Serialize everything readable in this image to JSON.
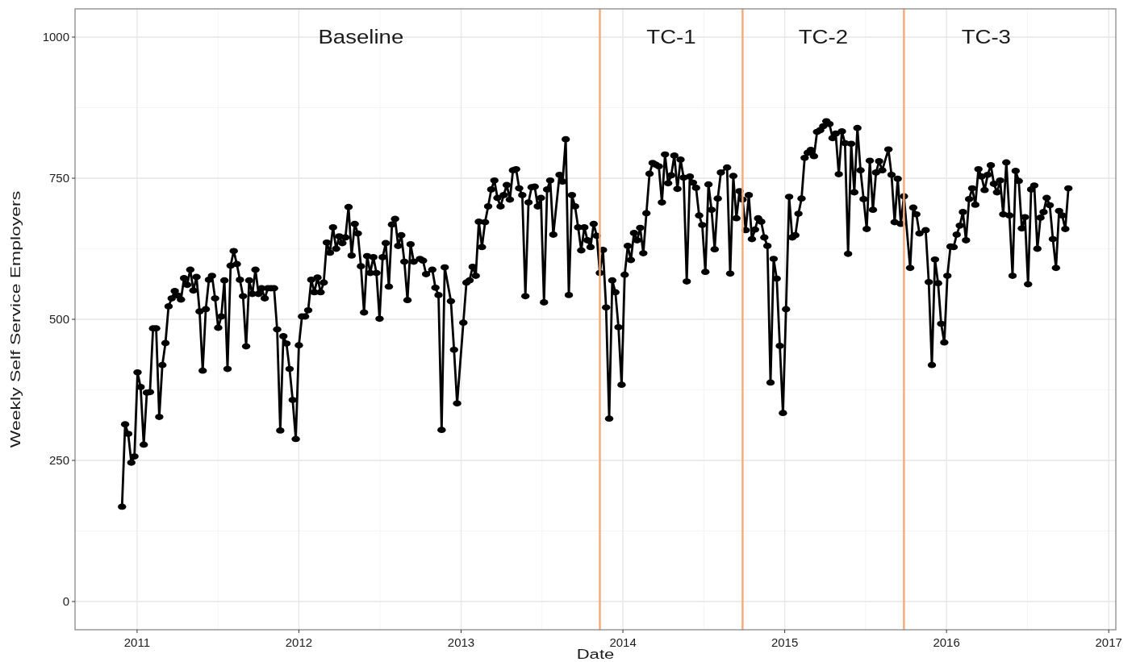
{
  "chart_data": {
    "type": "line",
    "xlabel": "Date",
    "ylabel": "Weekly Self Service Employers",
    "x": [
      "2010-11-28",
      "2010-12-05",
      "2010-12-12",
      "2010-12-19",
      "2010-12-26",
      "2011-01-02",
      "2011-01-09",
      "2011-01-16",
      "2011-01-23",
      "2011-01-30",
      "2011-02-06",
      "2011-02-13",
      "2011-02-20",
      "2011-02-27",
      "2011-03-06",
      "2011-03-13",
      "2011-03-20",
      "2011-03-27",
      "2011-04-03",
      "2011-04-10",
      "2011-04-17",
      "2011-04-24",
      "2011-05-01",
      "2011-05-08",
      "2011-05-15",
      "2011-05-22",
      "2011-05-29",
      "2011-06-05",
      "2011-06-12",
      "2011-06-19",
      "2011-06-26",
      "2011-07-03",
      "2011-07-10",
      "2011-07-17",
      "2011-07-24",
      "2011-07-31",
      "2011-08-07",
      "2011-08-14",
      "2011-08-21",
      "2011-08-28",
      "2011-09-04",
      "2011-09-11",
      "2011-09-18",
      "2011-09-25",
      "2011-10-02",
      "2011-10-09",
      "2011-10-16",
      "2011-10-23",
      "2011-10-30",
      "2011-11-06",
      "2011-11-13",
      "2011-11-20",
      "2011-11-27",
      "2011-12-04",
      "2011-12-11",
      "2011-12-18",
      "2011-12-25",
      "2012-01-01",
      "2012-01-08",
      "2012-01-15",
      "2012-01-22",
      "2012-01-29",
      "2012-02-05",
      "2012-02-12",
      "2012-02-19",
      "2012-02-26",
      "2012-03-04",
      "2012-03-11",
      "2012-03-18",
      "2012-03-25",
      "2012-04-01",
      "2012-04-08",
      "2012-04-15",
      "2012-04-22",
      "2012-04-29",
      "2012-05-06",
      "2012-05-13",
      "2012-05-20",
      "2012-05-27",
      "2012-06-03",
      "2012-06-10",
      "2012-06-17",
      "2012-06-24",
      "2012-07-01",
      "2012-07-08",
      "2012-07-15",
      "2012-07-22",
      "2012-07-29",
      "2012-08-05",
      "2012-08-12",
      "2012-08-19",
      "2012-08-26",
      "2012-09-02",
      "2012-09-09",
      "2012-09-16",
      "2012-09-30",
      "2012-10-07",
      "2012-10-14",
      "2012-10-28",
      "2012-11-04",
      "2012-11-11",
      "2012-11-18",
      "2012-11-25",
      "2012-12-09",
      "2012-12-16",
      "2012-12-23",
      "2013-01-06",
      "2013-01-13",
      "2013-01-20",
      "2013-01-27",
      "2013-02-03",
      "2013-02-10",
      "2013-02-17",
      "2013-02-24",
      "2013-03-03",
      "2013-03-10",
      "2013-03-17",
      "2013-03-24",
      "2013-03-31",
      "2013-04-07",
      "2013-04-14",
      "2013-04-21",
      "2013-04-28",
      "2013-05-05",
      "2013-05-12",
      "2013-05-19",
      "2013-05-26",
      "2013-06-02",
      "2013-06-09",
      "2013-06-16",
      "2013-06-23",
      "2013-06-30",
      "2013-07-07",
      "2013-07-14",
      "2013-07-21",
      "2013-07-28",
      "2013-08-11",
      "2013-08-18",
      "2013-08-25",
      "2013-09-01",
      "2013-09-08",
      "2013-09-15",
      "2013-09-22",
      "2013-09-29",
      "2013-10-06",
      "2013-10-13",
      "2013-10-20",
      "2013-10-27",
      "2013-11-03",
      "2013-11-10",
      "2013-11-17",
      "2013-11-24",
      "2013-12-01",
      "2013-12-08",
      "2013-12-15",
      "2013-12-22",
      "2013-12-29",
      "2014-01-05",
      "2014-01-12",
      "2014-01-19",
      "2014-01-26",
      "2014-02-02",
      "2014-02-09",
      "2014-02-16",
      "2014-02-23",
      "2014-03-02",
      "2014-03-09",
      "2014-03-16",
      "2014-03-23",
      "2014-03-30",
      "2014-04-06",
      "2014-04-13",
      "2014-04-20",
      "2014-04-27",
      "2014-05-04",
      "2014-05-11",
      "2014-05-18",
      "2014-05-25",
      "2014-06-01",
      "2014-06-08",
      "2014-06-15",
      "2014-06-22",
      "2014-06-29",
      "2014-07-06",
      "2014-07-13",
      "2014-07-20",
      "2014-07-27",
      "2014-08-03",
      "2014-08-10",
      "2014-08-24",
      "2014-08-31",
      "2014-09-07",
      "2014-09-14",
      "2014-09-21",
      "2014-09-28",
      "2014-10-05",
      "2014-10-12",
      "2014-10-19",
      "2014-10-26",
      "2014-11-02",
      "2014-11-09",
      "2014-11-16",
      "2014-11-23",
      "2014-11-30",
      "2014-12-07",
      "2014-12-14",
      "2014-12-21",
      "2014-12-28",
      "2015-01-04",
      "2015-01-11",
      "2015-01-18",
      "2015-01-25",
      "2015-02-01",
      "2015-02-08",
      "2015-02-15",
      "2015-02-22",
      "2015-03-01",
      "2015-03-08",
      "2015-03-15",
      "2015-03-22",
      "2015-03-29",
      "2015-04-05",
      "2015-04-12",
      "2015-04-19",
      "2015-04-26",
      "2015-05-03",
      "2015-05-10",
      "2015-05-17",
      "2015-05-24",
      "2015-05-31",
      "2015-06-07",
      "2015-06-14",
      "2015-06-21",
      "2015-06-28",
      "2015-07-05",
      "2015-07-12",
      "2015-07-19",
      "2015-07-26",
      "2015-08-02",
      "2015-08-09",
      "2015-08-23",
      "2015-08-30",
      "2015-09-06",
      "2015-09-13",
      "2015-09-20",
      "2015-09-27",
      "2015-10-11",
      "2015-10-18",
      "2015-10-25",
      "2015-11-01",
      "2015-11-15",
      "2015-11-22",
      "2015-11-29",
      "2015-12-06",
      "2015-12-13",
      "2015-12-20",
      "2015-12-27",
      "2016-01-03",
      "2016-01-10",
      "2016-01-17",
      "2016-01-24",
      "2016-01-31",
      "2016-02-07",
      "2016-02-14",
      "2016-02-21",
      "2016-02-28",
      "2016-03-06",
      "2016-03-13",
      "2016-03-20",
      "2016-03-27",
      "2016-04-03",
      "2016-04-10",
      "2016-04-17",
      "2016-04-24",
      "2016-05-01",
      "2016-05-08",
      "2016-05-15",
      "2016-05-22",
      "2016-05-29",
      "2016-06-05",
      "2016-06-12",
      "2016-06-19",
      "2016-06-26",
      "2016-07-03",
      "2016-07-10",
      "2016-07-17",
      "2016-07-24",
      "2016-07-31",
      "2016-08-07",
      "2016-08-14",
      "2016-08-21",
      "2016-08-28",
      "2016-09-04",
      "2016-09-11",
      "2016-09-18",
      "2016-09-25",
      "2016-10-02"
    ],
    "series": [
      {
        "color": "#000000",
        "values": [
          168,
          314,
          297,
          246,
          257,
          406,
          380,
          278,
          370,
          371,
          484,
          484,
          327,
          419,
          458,
          523,
          537,
          550,
          542,
          535,
          573,
          561,
          588,
          551,
          575,
          514,
          409,
          518,
          570,
          577,
          537,
          485,
          505,
          569,
          412,
          595,
          621,
          598,
          570,
          541,
          452,
          569,
          545,
          588,
          545,
          555,
          537,
          555,
          555,
          555,
          482,
          303,
          470,
          457,
          412,
          357,
          288,
          454,
          505,
          505,
          516,
          570,
          548,
          574,
          548,
          565,
          636,
          618,
          663,
          625,
          647,
          635,
          645,
          699,
          613,
          669,
          652,
          594,
          512,
          612,
          582,
          610,
          582,
          501,
          610,
          635,
          558,
          668,
          678,
          630,
          649,
          602,
          534,
          633,
          602,
          607,
          604,
          580,
          588,
          556,
          543,
          304,
          592,
          532,
          446,
          351,
          494,
          565,
          569,
          593,
          577,
          673,
          628,
          672,
          700,
          730,
          746,
          715,
          700,
          720,
          738,
          712,
          764,
          766,
          732,
          720,
          541,
          707,
          734,
          735,
          700,
          715,
          530,
          730,
          746,
          650,
          756,
          744,
          819,
          543,
          720,
          700,
          663,
          622,
          663,
          640,
          628,
          669,
          648,
          582,
          623,
          521,
          324,
          569,
          548,
          486,
          384,
          579,
          630,
          605,
          653,
          640,
          662,
          617,
          688,
          758,
          777,
          774,
          771,
          707,
          792,
          741,
          755,
          790,
          731,
          783,
          751,
          567,
          753,
          742,
          733,
          684,
          667,
          584,
          739,
          694,
          624,
          714,
          760,
          769,
          581,
          754,
          679,
          727,
          712,
          658,
          720,
          642,
          659,
          679,
          673,
          645,
          630,
          388,
          607,
          572,
          453,
          334,
          518,
          717,
          645,
          649,
          687,
          714,
          786,
          795,
          800,
          789,
          832,
          835,
          842,
          851,
          846,
          821,
          829,
          757,
          833,
          812,
          616,
          811,
          725,
          839,
          764,
          713,
          660,
          781,
          694,
          760,
          780,
          764,
          801,
          756,
          672,
          749,
          669,
          718,
          591,
          698,
          686,
          652,
          658,
          566,
          419,
          606,
          564,
          492,
          459,
          577,
          629,
          628,
          650,
          666,
          690,
          640,
          713,
          732,
          703,
          766,
          753,
          729,
          756,
          773,
          740,
          725,
          746,
          686,
          778,
          684,
          577,
          763,
          745,
          661,
          681,
          562,
          730,
          737,
          625,
          680,
          690,
          715,
          702,
          642,
          591,
          692,
          684,
          660,
          732
        ]
      }
    ],
    "xlim": [
      "2010-08-14",
      "2017-01-17"
    ],
    "ylim": [
      -50,
      1050
    ],
    "xticks": [
      "2011",
      "2012",
      "2013",
      "2014",
      "2015",
      "2016",
      "2017"
    ],
    "yticks": [
      0,
      250,
      500,
      750,
      1000
    ],
    "grid": true,
    "marker": "circle",
    "line_style": "solid",
    "ref_lines": [
      {
        "axis": "x",
        "value": "2013-11-10",
        "color": "#f5a878"
      },
      {
        "axis": "x",
        "value": "2014-09-28",
        "color": "#f5a878"
      },
      {
        "axis": "x",
        "value": "2015-09-27",
        "color": "#f5a878"
      }
    ],
    "annotations": [
      "Baseline",
      "TC-1",
      "TC-2",
      "TC-3"
    ]
  }
}
